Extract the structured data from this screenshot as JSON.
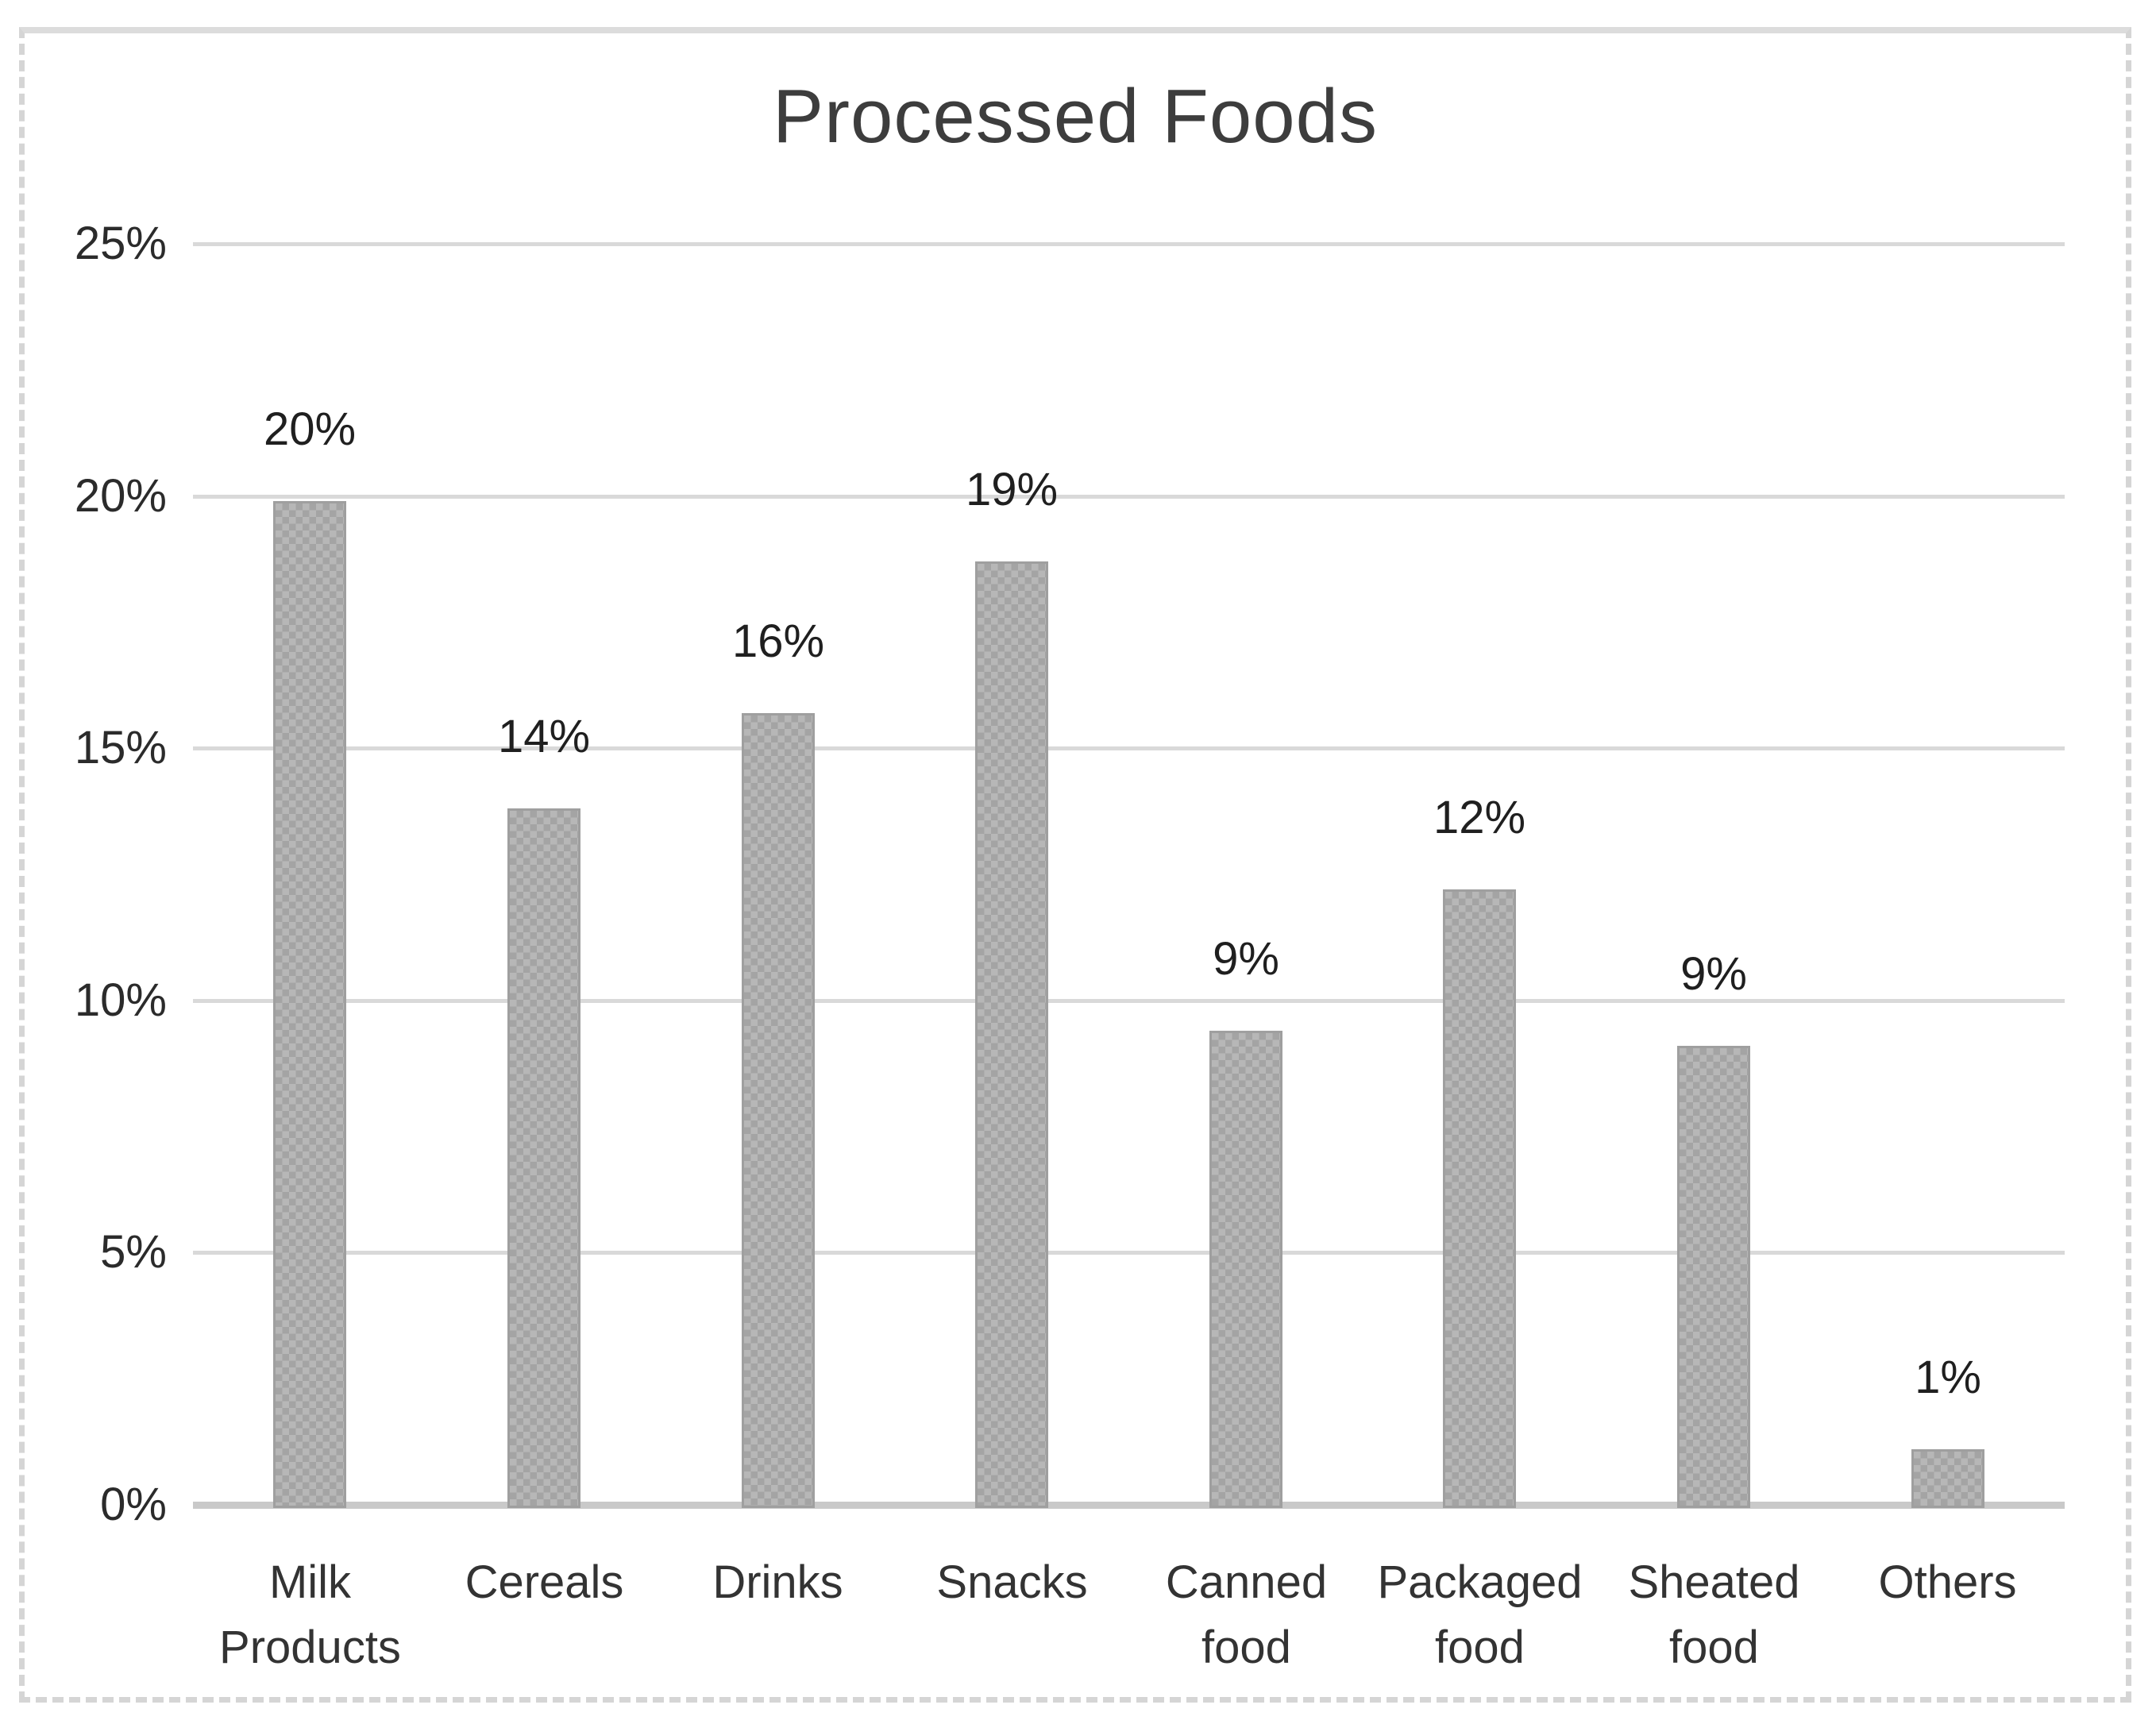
{
  "title": "Processed Foods",
  "chart_data": {
    "type": "bar",
    "title": "Processed Foods",
    "categories": [
      "Milk Products",
      "Cereals",
      "Drinks",
      "Snacks",
      "Canned food",
      "Packaged food",
      "Sheated food",
      "Others"
    ],
    "category_lines": [
      [
        "Milk",
        "Products"
      ],
      [
        "Cereals"
      ],
      [
        "Drinks"
      ],
      [
        "Snacks"
      ],
      [
        "Canned",
        "food"
      ],
      [
        "Packaged",
        "food"
      ],
      [
        "Sheated",
        "food"
      ],
      [
        "Others"
      ]
    ],
    "values": [
      20,
      14,
      16,
      19,
      9,
      12,
      9,
      1
    ],
    "value_labels": [
      "20%",
      "14%",
      "16%",
      "19%",
      "9%",
      "12%",
      "9%",
      "1%"
    ],
    "bar_heights_pct": [
      19.9,
      13.8,
      15.7,
      18.7,
      9.4,
      12.2,
      9.1,
      1.1
    ],
    "y_ticks": [
      "0%",
      "5%",
      "10%",
      "15%",
      "20%",
      "25%"
    ],
    "y_tick_values": [
      0,
      5,
      10,
      15,
      20,
      25
    ],
    "ylim": [
      0,
      25
    ],
    "xlabel": "",
    "ylabel": "",
    "grid": true,
    "legend": false,
    "bar_color": "#b5b5b5",
    "bar_pattern_color": "#a4a4a4",
    "gridline_color": "#d9d9d9",
    "axis_line_color": "#c9c9c9",
    "text_color": "#2b2b2b",
    "title_color": "#3d3d3d",
    "background_color": "#ffffff"
  }
}
